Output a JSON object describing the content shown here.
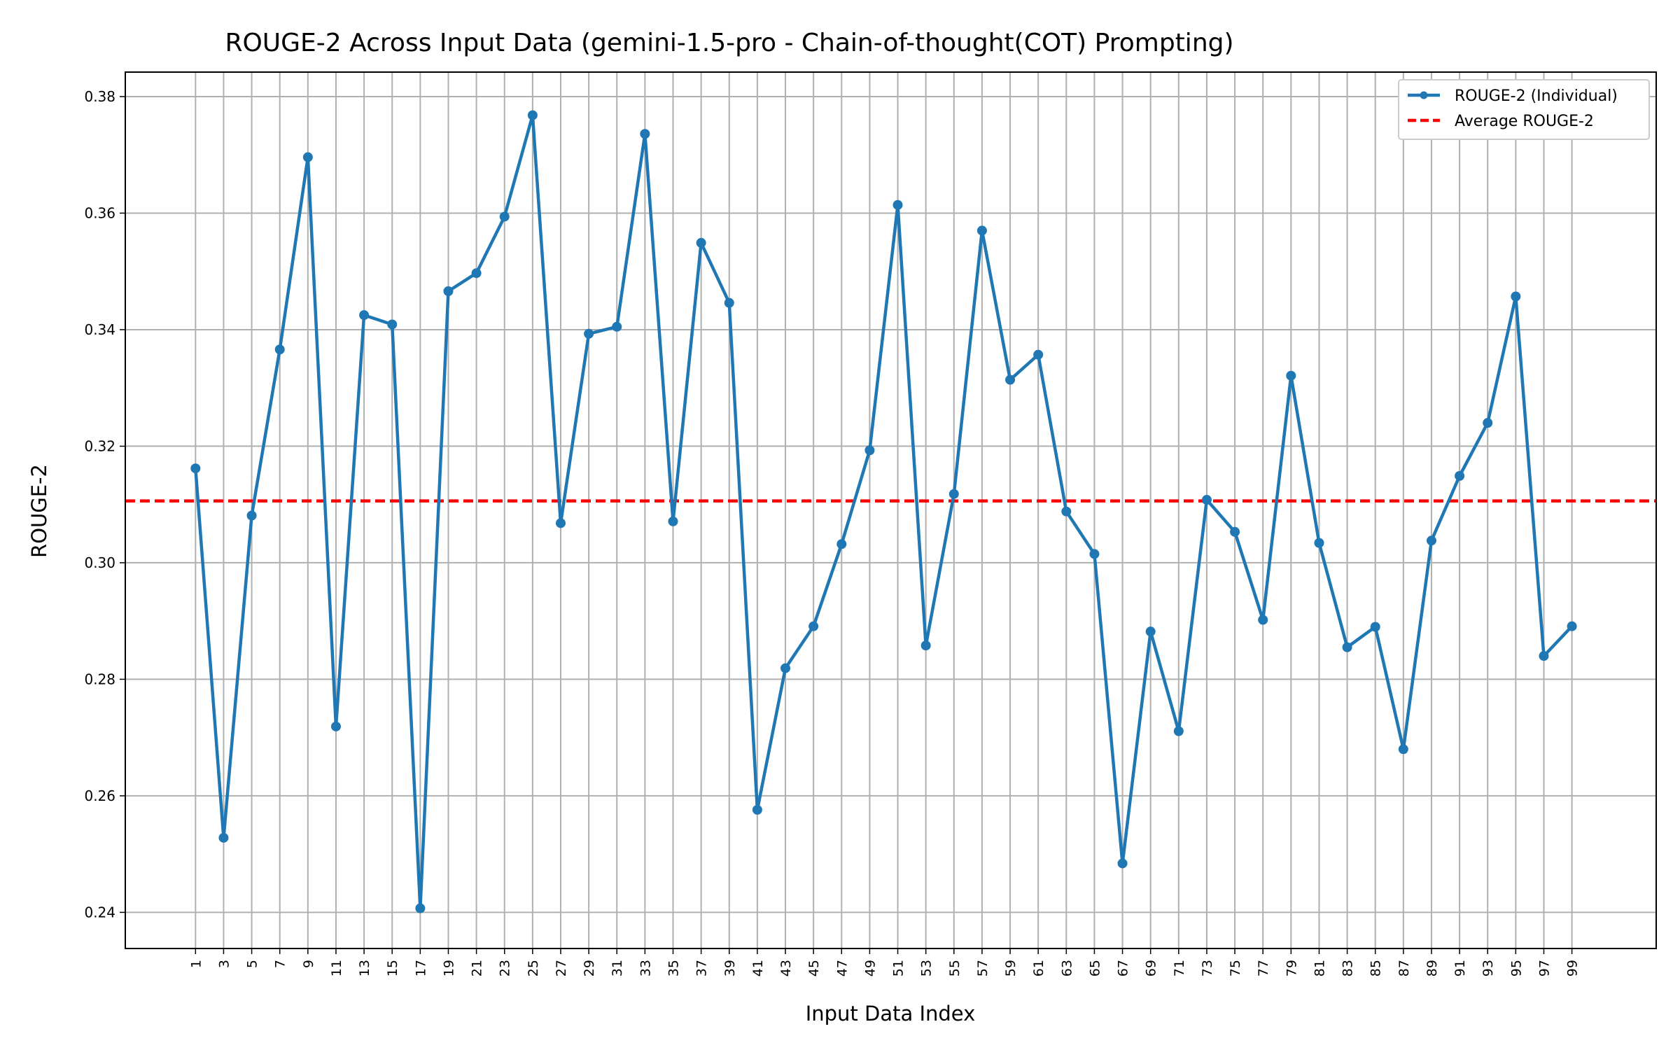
{
  "chart_data": {
    "type": "line",
    "title": "ROUGE-2 Across Input Data (gemini-1.5-pro - Chain-of-thought(COT) Prompting)",
    "xlabel": "Input Data Index",
    "ylabel": "ROUGE-2",
    "x": [
      1,
      3,
      5,
      7,
      9,
      11,
      13,
      15,
      17,
      19,
      21,
      23,
      25,
      27,
      29,
      31,
      33,
      35,
      37,
      39,
      41,
      43,
      45,
      47,
      49,
      51,
      53,
      55,
      57,
      59,
      61,
      63,
      65,
      67,
      69,
      71,
      73,
      75,
      77,
      79,
      81,
      83,
      85,
      87,
      89,
      91,
      93,
      95,
      97,
      99
    ],
    "xlim": [
      -4,
      105
    ],
    "ylim": [
      0.2338,
      0.3842
    ],
    "x_ticks": [
      "1",
      "3",
      "5",
      "7",
      "9",
      "11",
      "13",
      "15",
      "17",
      "19",
      "21",
      "23",
      "25",
      "27",
      "29",
      "31",
      "33",
      "35",
      "37",
      "39",
      "41",
      "43",
      "45",
      "47",
      "49",
      "51",
      "53",
      "55",
      "57",
      "59",
      "61",
      "63",
      "65",
      "67",
      "69",
      "71",
      "73",
      "75",
      "77",
      "79",
      "81",
      "83",
      "85",
      "87",
      "89",
      "91",
      "93",
      "95",
      "97",
      "99"
    ],
    "y_ticks": [
      "0.24",
      "0.26",
      "0.28",
      "0.30",
      "0.32",
      "0.34",
      "0.36",
      "0.38"
    ],
    "grid": true,
    "legend_position": "top-right",
    "series": [
      {
        "name": "ROUGE-2 (Individual)",
        "color": "#1f77b4",
        "style": "solid-with-markers",
        "values": [
          0.3162,
          0.2528,
          0.3081,
          0.3366,
          0.3696,
          0.2719,
          0.3425,
          0.3409,
          0.2407,
          0.3466,
          0.3497,
          0.3594,
          0.3768,
          0.3068,
          0.3393,
          0.3405,
          0.3736,
          0.3071,
          0.3549,
          0.3446,
          0.2576,
          0.2819,
          0.2891,
          0.3032,
          0.3193,
          0.3614,
          0.2858,
          0.3118,
          0.357,
          0.3314,
          0.3357,
          0.3088,
          0.3015,
          0.2484,
          0.2882,
          0.2711,
          0.3108,
          0.3053,
          0.2902,
          0.3321,
          0.3034,
          0.2855,
          0.289,
          0.268,
          0.3038,
          0.3149,
          0.324,
          0.3457,
          0.284,
          0.2891
        ]
      },
      {
        "name": "Average ROUGE-2",
        "color": "#ff0000",
        "style": "dashed",
        "value": 0.3106
      }
    ]
  }
}
